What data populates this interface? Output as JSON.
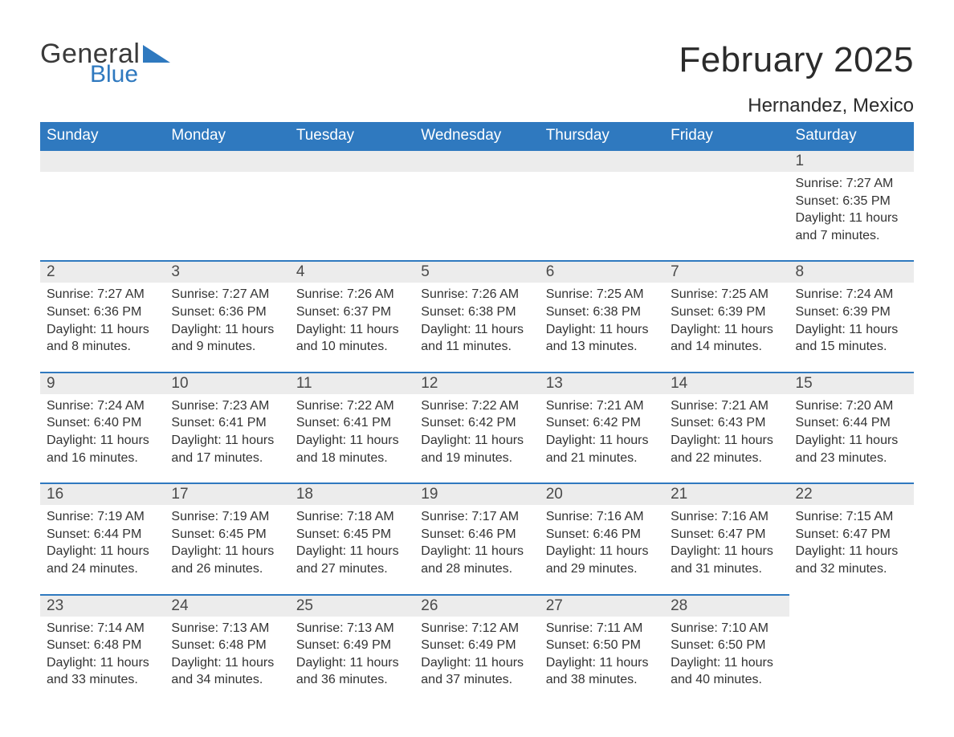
{
  "brand": {
    "general": "General",
    "blue": "Blue",
    "logo_color": "#2f79bf"
  },
  "header": {
    "month_title": "February 2025",
    "location": "Hernandez, Mexico"
  },
  "styling": {
    "header_bg": "#2f79bf",
    "header_text": "#ffffff",
    "daynum_bg": "#ececec",
    "daynum_border": "#2f79bf",
    "body_text": "#333333",
    "page_bg": "#ffffff",
    "title_fontsize": 44,
    "location_fontsize": 24,
    "dayheader_fontsize": 19,
    "body_fontsize": 16
  },
  "day_headers": [
    "Sunday",
    "Monday",
    "Tuesday",
    "Wednesday",
    "Thursday",
    "Friday",
    "Saturday"
  ],
  "weeks": [
    [
      null,
      null,
      null,
      null,
      null,
      null,
      {
        "n": "1",
        "sr": "Sunrise: 7:27 AM",
        "ss": "Sunset: 6:35 PM",
        "dl1": "Daylight: 11 hours",
        "dl2": "and 7 minutes."
      }
    ],
    [
      {
        "n": "2",
        "sr": "Sunrise: 7:27 AM",
        "ss": "Sunset: 6:36 PM",
        "dl1": "Daylight: 11 hours",
        "dl2": "and 8 minutes."
      },
      {
        "n": "3",
        "sr": "Sunrise: 7:27 AM",
        "ss": "Sunset: 6:36 PM",
        "dl1": "Daylight: 11 hours",
        "dl2": "and 9 minutes."
      },
      {
        "n": "4",
        "sr": "Sunrise: 7:26 AM",
        "ss": "Sunset: 6:37 PM",
        "dl1": "Daylight: 11 hours",
        "dl2": "and 10 minutes."
      },
      {
        "n": "5",
        "sr": "Sunrise: 7:26 AM",
        "ss": "Sunset: 6:38 PM",
        "dl1": "Daylight: 11 hours",
        "dl2": "and 11 minutes."
      },
      {
        "n": "6",
        "sr": "Sunrise: 7:25 AM",
        "ss": "Sunset: 6:38 PM",
        "dl1": "Daylight: 11 hours",
        "dl2": "and 13 minutes."
      },
      {
        "n": "7",
        "sr": "Sunrise: 7:25 AM",
        "ss": "Sunset: 6:39 PM",
        "dl1": "Daylight: 11 hours",
        "dl2": "and 14 minutes."
      },
      {
        "n": "8",
        "sr": "Sunrise: 7:24 AM",
        "ss": "Sunset: 6:39 PM",
        "dl1": "Daylight: 11 hours",
        "dl2": "and 15 minutes."
      }
    ],
    [
      {
        "n": "9",
        "sr": "Sunrise: 7:24 AM",
        "ss": "Sunset: 6:40 PM",
        "dl1": "Daylight: 11 hours",
        "dl2": "and 16 minutes."
      },
      {
        "n": "10",
        "sr": "Sunrise: 7:23 AM",
        "ss": "Sunset: 6:41 PM",
        "dl1": "Daylight: 11 hours",
        "dl2": "and 17 minutes."
      },
      {
        "n": "11",
        "sr": "Sunrise: 7:22 AM",
        "ss": "Sunset: 6:41 PM",
        "dl1": "Daylight: 11 hours",
        "dl2": "and 18 minutes."
      },
      {
        "n": "12",
        "sr": "Sunrise: 7:22 AM",
        "ss": "Sunset: 6:42 PM",
        "dl1": "Daylight: 11 hours",
        "dl2": "and 19 minutes."
      },
      {
        "n": "13",
        "sr": "Sunrise: 7:21 AM",
        "ss": "Sunset: 6:42 PM",
        "dl1": "Daylight: 11 hours",
        "dl2": "and 21 minutes."
      },
      {
        "n": "14",
        "sr": "Sunrise: 7:21 AM",
        "ss": "Sunset: 6:43 PM",
        "dl1": "Daylight: 11 hours",
        "dl2": "and 22 minutes."
      },
      {
        "n": "15",
        "sr": "Sunrise: 7:20 AM",
        "ss": "Sunset: 6:44 PM",
        "dl1": "Daylight: 11 hours",
        "dl2": "and 23 minutes."
      }
    ],
    [
      {
        "n": "16",
        "sr": "Sunrise: 7:19 AM",
        "ss": "Sunset: 6:44 PM",
        "dl1": "Daylight: 11 hours",
        "dl2": "and 24 minutes."
      },
      {
        "n": "17",
        "sr": "Sunrise: 7:19 AM",
        "ss": "Sunset: 6:45 PM",
        "dl1": "Daylight: 11 hours",
        "dl2": "and 26 minutes."
      },
      {
        "n": "18",
        "sr": "Sunrise: 7:18 AM",
        "ss": "Sunset: 6:45 PM",
        "dl1": "Daylight: 11 hours",
        "dl2": "and 27 minutes."
      },
      {
        "n": "19",
        "sr": "Sunrise: 7:17 AM",
        "ss": "Sunset: 6:46 PM",
        "dl1": "Daylight: 11 hours",
        "dl2": "and 28 minutes."
      },
      {
        "n": "20",
        "sr": "Sunrise: 7:16 AM",
        "ss": "Sunset: 6:46 PM",
        "dl1": "Daylight: 11 hours",
        "dl2": "and 29 minutes."
      },
      {
        "n": "21",
        "sr": "Sunrise: 7:16 AM",
        "ss": "Sunset: 6:47 PM",
        "dl1": "Daylight: 11 hours",
        "dl2": "and 31 minutes."
      },
      {
        "n": "22",
        "sr": "Sunrise: 7:15 AM",
        "ss": "Sunset: 6:47 PM",
        "dl1": "Daylight: 11 hours",
        "dl2": "and 32 minutes."
      }
    ],
    [
      {
        "n": "23",
        "sr": "Sunrise: 7:14 AM",
        "ss": "Sunset: 6:48 PM",
        "dl1": "Daylight: 11 hours",
        "dl2": "and 33 minutes."
      },
      {
        "n": "24",
        "sr": "Sunrise: 7:13 AM",
        "ss": "Sunset: 6:48 PM",
        "dl1": "Daylight: 11 hours",
        "dl2": "and 34 minutes."
      },
      {
        "n": "25",
        "sr": "Sunrise: 7:13 AM",
        "ss": "Sunset: 6:49 PM",
        "dl1": "Daylight: 11 hours",
        "dl2": "and 36 minutes."
      },
      {
        "n": "26",
        "sr": "Sunrise: 7:12 AM",
        "ss": "Sunset: 6:49 PM",
        "dl1": "Daylight: 11 hours",
        "dl2": "and 37 minutes."
      },
      {
        "n": "27",
        "sr": "Sunrise: 7:11 AM",
        "ss": "Sunset: 6:50 PM",
        "dl1": "Daylight: 11 hours",
        "dl2": "and 38 minutes."
      },
      {
        "n": "28",
        "sr": "Sunrise: 7:10 AM",
        "ss": "Sunset: 6:50 PM",
        "dl1": "Daylight: 11 hours",
        "dl2": "and 40 minutes."
      },
      null
    ]
  ]
}
